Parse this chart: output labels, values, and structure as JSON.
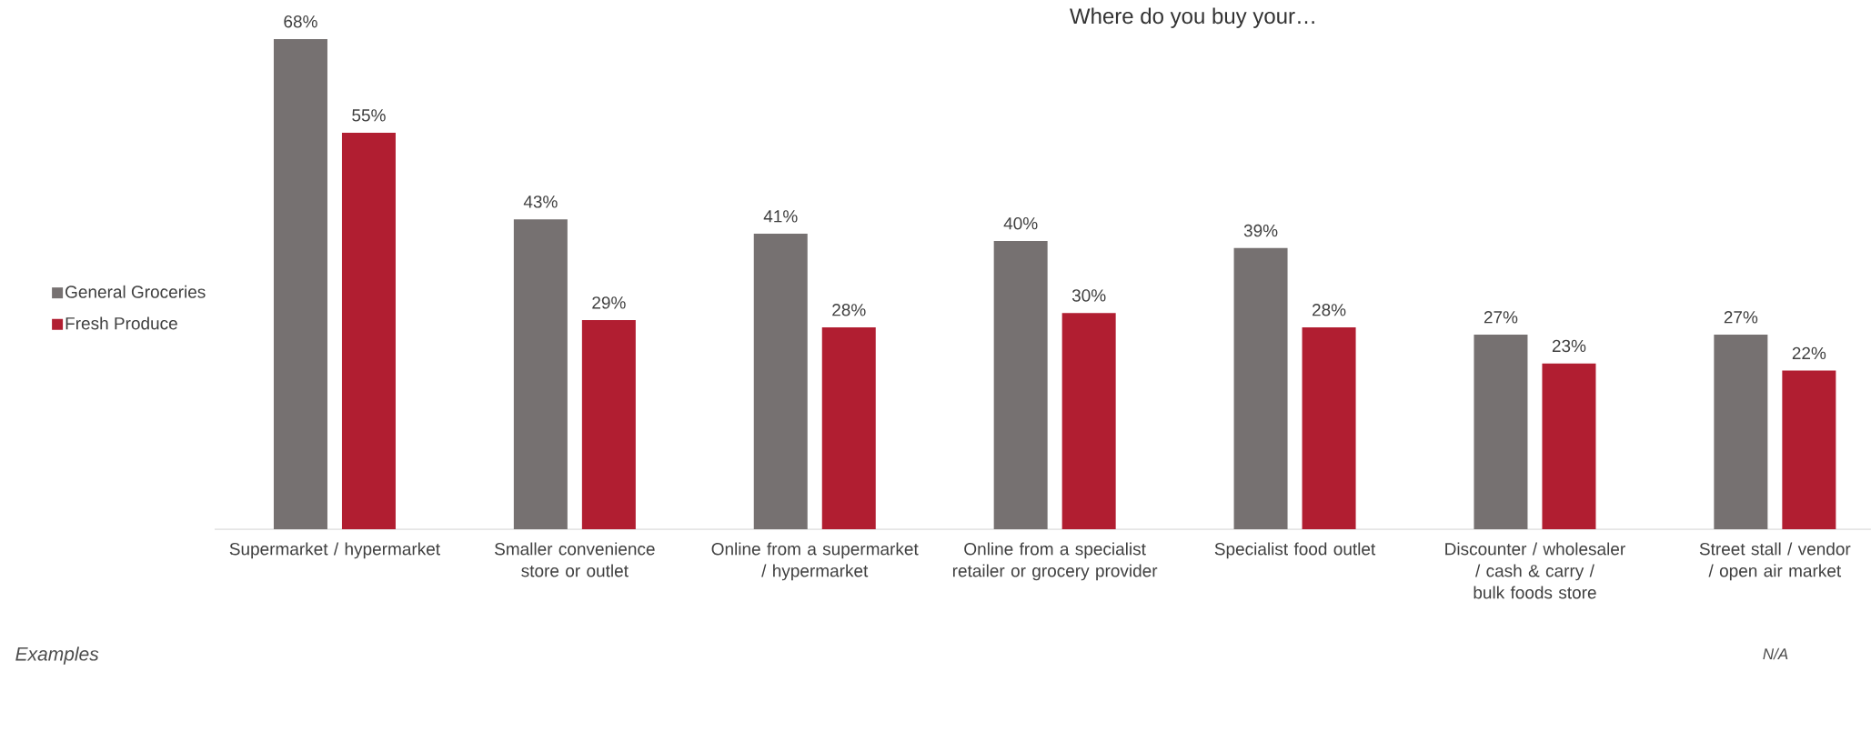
{
  "chart_data": {
    "type": "bar",
    "title": "Where do you buy your…",
    "categories": [
      "Supermarket / hypermarket",
      "Smaller convenience store or outlet",
      "Online from a supermarket / hypermarket",
      "Online from a specialist retailer or grocery provider",
      "Specialist food outlet",
      "Discounter / wholesaler / cash & carry / bulk foods store",
      "Street stall / vendor / open air market"
    ],
    "series": [
      {
        "name": "General Groceries",
        "color": "#767171",
        "values": [
          68,
          43,
          41,
          40,
          39,
          27,
          27
        ],
        "value_labels": [
          "68%",
          "43%",
          "41%",
          "40%",
          "39%",
          "27%",
          "27%"
        ]
      },
      {
        "name": "Fresh Produce",
        "color": "#b11e31",
        "values": [
          55,
          29,
          28,
          30,
          28,
          23,
          22
        ],
        "value_labels": [
          "55%",
          "29%",
          "28%",
          "30%",
          "28%",
          "23%",
          "22%"
        ]
      }
    ],
    "legend": "left",
    "annotations": [
      "Examples",
      "N/A"
    ]
  }
}
